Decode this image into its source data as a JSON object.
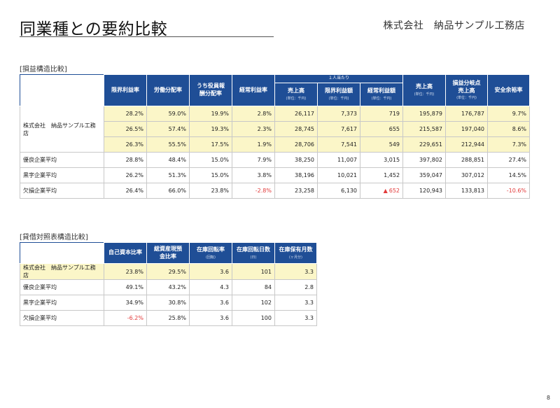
{
  "header": {
    "title": "同業種との要約比較",
    "company": "株式会社　納品サンプル工務店"
  },
  "section1": {
    "label": "[損益構造比較]",
    "group_header": "１人当たり",
    "columns": [
      {
        "label": "限界利益率"
      },
      {
        "label": "労働分配率"
      },
      {
        "label": "うち役員報酬分配率"
      },
      {
        "label": "経常利益率"
      },
      {
        "label": "売上高",
        "sub": "(単位：千円)"
      },
      {
        "label": "限界利益額",
        "sub": "(単位：千円)"
      },
      {
        "label": "経常利益額",
        "sub": "(単位：千円)"
      },
      {
        "label": "売上高",
        "sub": "(単位：千円)"
      },
      {
        "label": "損益分岐点売上高",
        "sub": "(単位：千円)"
      },
      {
        "label": "安全余裕率"
      }
    ],
    "company_label": "株式会社　納品サンプル工務店",
    "company_rows": [
      [
        "28.2%",
        "59.0%",
        "19.9%",
        "2.8%",
        "26,117",
        "7,373",
        "719",
        "195,879",
        "176,787",
        "9.7%"
      ],
      [
        "26.5%",
        "57.4%",
        "19.3%",
        "2.3%",
        "28,745",
        "7,617",
        "655",
        "215,587",
        "197,040",
        "8.6%"
      ],
      [
        "26.3%",
        "55.5%",
        "17.5%",
        "1.9%",
        "28,706",
        "7,541",
        "549",
        "229,651",
        "212,944",
        "7.3%"
      ]
    ],
    "other_rows": [
      {
        "label": "優良企業平均",
        "values": [
          "28.8%",
          "48.4%",
          "15.0%",
          "7.9%",
          "38,250",
          "11,007",
          "3,015",
          "397,802",
          "288,851",
          "27.4%"
        ]
      },
      {
        "label": "黒字企業平均",
        "values": [
          "26.2%",
          "51.3%",
          "15.0%",
          "3.8%",
          "38,196",
          "10,021",
          "1,452",
          "359,047",
          "307,012",
          "14.5%"
        ]
      },
      {
        "label": "欠損企業平均",
        "values": [
          "26.4%",
          "66.0%",
          "23.8%",
          "-2.8%",
          "23,258",
          "6,130",
          "652",
          "120,943",
          "133,813",
          "-10.6%"
        ]
      }
    ],
    "triangle": "▲"
  },
  "section2": {
    "label": "[貸借対照表構造比較]",
    "columns": [
      {
        "label": "自己資本比率"
      },
      {
        "label": "総資産現預金比率"
      },
      {
        "label": "在庫回転率",
        "sub": "(回転)"
      },
      {
        "label": "在庫回転日数",
        "sub": "(日)"
      },
      {
        "label": "在庫保有月数",
        "sub": "(ヶ月分)"
      }
    ],
    "rows": [
      {
        "label": "株式会社　納品サンプル工務店",
        "values": [
          "23.8%",
          "29.5%",
          "3.6",
          "101",
          "3.3"
        ]
      },
      {
        "label": "優良企業平均",
        "values": [
          "49.1%",
          "43.2%",
          "4.3",
          "84",
          "2.8"
        ]
      },
      {
        "label": "黒字企業平均",
        "values": [
          "34.9%",
          "30.8%",
          "3.6",
          "102",
          "3.3"
        ]
      },
      {
        "label": "欠損企業平均",
        "values": [
          "-6.2%",
          "25.8%",
          "3.6",
          "100",
          "3.3"
        ]
      }
    ]
  },
  "page_number": "8",
  "colors": {
    "header_bg": "#1f4e96",
    "highlight": "#fbf6c8",
    "negative": "#e23a3a"
  }
}
